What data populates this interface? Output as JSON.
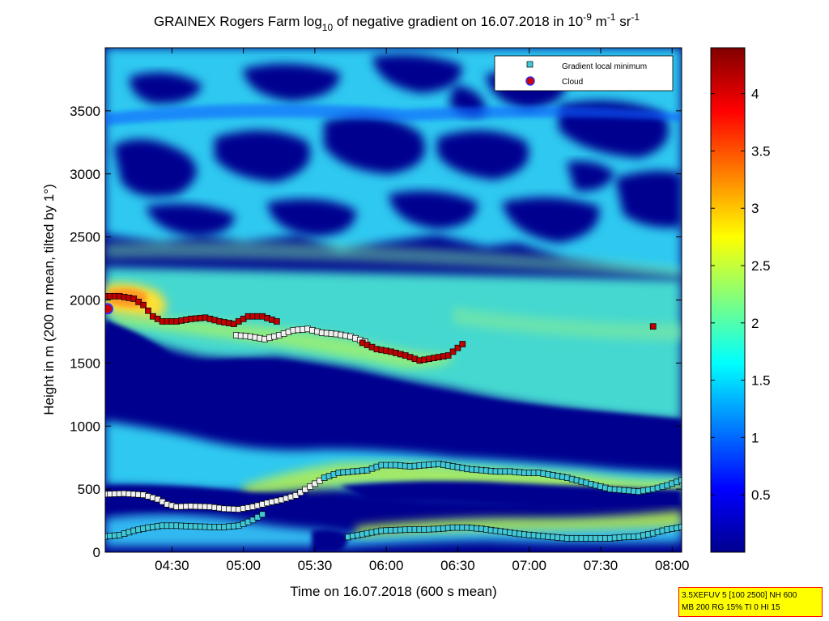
{
  "chart_data": {
    "type": "heatmap",
    "title": {
      "prefix": "GRAINEX Rogers Farm log",
      "sub": "10",
      "middle": " of negative gradient on 16.07.2018 in 10",
      "sup1": "-9",
      "unit1": " m",
      "sup2": "-1",
      "unit2": " sr",
      "sup3": "-1"
    },
    "xlabel": "Time on 16.07.2018 (600 s mean)",
    "ylabel": "Height in m (200 m mean, tilted by 1°)",
    "xlim": [
      "04:02",
      "08:04"
    ],
    "ylim": [
      0,
      4000
    ],
    "x_ticks": [
      "04:30",
      "05:00",
      "05:30",
      "06:00",
      "06:30",
      "07:00",
      "07:30",
      "08:00"
    ],
    "y_ticks": [
      "0",
      "500",
      "1000",
      "1500",
      "2000",
      "2500",
      "3000",
      "3500"
    ],
    "colorbar": {
      "colormap": "jet",
      "range": [
        0,
        4.4
      ],
      "ticks": [
        "0.5",
        "1",
        "1.5",
        "2",
        "2.5",
        "3",
        "3.5",
        "4"
      ]
    },
    "legend": {
      "placement": "top-right",
      "entries": [
        {
          "label": "Gradient local minimum",
          "marker": "square",
          "color": "#40c8d8"
        },
        {
          "label": "Cloud",
          "marker": "circle",
          "color": "#d00000"
        }
      ]
    },
    "series": [
      {
        "name": "Gradient local minimum",
        "marker": "square",
        "points": [
          [
            "04:02",
            460
          ],
          [
            "04:10",
            465
          ],
          [
            "04:18",
            455
          ],
          [
            "04:24",
            420
          ],
          [
            "04:28",
            380
          ],
          [
            "04:32",
            360
          ],
          [
            "04:38",
            365
          ],
          [
            "04:46",
            360
          ],
          [
            "04:52",
            345
          ],
          [
            "04:58",
            340
          ],
          [
            "05:04",
            360
          ],
          [
            "05:10",
            390
          ],
          [
            "05:16",
            415
          ],
          [
            "05:22",
            450
          ],
          [
            "05:28",
            520
          ],
          [
            "05:34",
            590
          ],
          [
            "05:40",
            630
          ],
          [
            "05:46",
            640
          ],
          [
            "05:52",
            650
          ],
          [
            "05:58",
            690
          ],
          [
            "06:04",
            690
          ],
          [
            "06:10",
            680
          ],
          [
            "06:16",
            690
          ],
          [
            "06:22",
            700
          ],
          [
            "06:28",
            680
          ],
          [
            "06:34",
            660
          ],
          [
            "06:40",
            650
          ],
          [
            "06:46",
            640
          ],
          [
            "06:52",
            640
          ],
          [
            "06:58",
            630
          ],
          [
            "07:04",
            630
          ],
          [
            "07:10",
            610
          ],
          [
            "07:16",
            590
          ],
          [
            "07:22",
            560
          ],
          [
            "07:28",
            530
          ],
          [
            "07:34",
            500
          ],
          [
            "07:40",
            490
          ],
          [
            "07:46",
            480
          ],
          [
            "07:52",
            500
          ],
          [
            "07:58",
            530
          ],
          [
            "08:04",
            570
          ]
        ]
      },
      {
        "name": "Gradient local minimum",
        "marker": "square",
        "points": [
          [
            "04:02",
            125
          ],
          [
            "04:08",
            135
          ],
          [
            "04:14",
            170
          ],
          [
            "04:20",
            195
          ],
          [
            "04:26",
            210
          ],
          [
            "04:32",
            210
          ],
          [
            "04:38",
            205
          ],
          [
            "04:46",
            200
          ],
          [
            "04:52",
            200
          ],
          [
            "04:58",
            210
          ],
          [
            "05:04",
            255
          ],
          [
            "05:08",
            300
          ]
        ]
      },
      {
        "name": "Gradient local minimum",
        "marker": "square",
        "points": [
          [
            "05:44",
            120
          ],
          [
            "05:52",
            150
          ],
          [
            "05:58",
            170
          ],
          [
            "06:04",
            175
          ],
          [
            "06:10",
            180
          ],
          [
            "06:16",
            180
          ],
          [
            "06:22",
            185
          ],
          [
            "06:28",
            195
          ],
          [
            "06:34",
            195
          ],
          [
            "06:40",
            185
          ],
          [
            "06:46",
            170
          ],
          [
            "06:52",
            155
          ],
          [
            "06:58",
            140
          ],
          [
            "07:04",
            130
          ],
          [
            "07:10",
            120
          ],
          [
            "07:16",
            110
          ],
          [
            "07:22",
            110
          ],
          [
            "07:28",
            110
          ],
          [
            "07:34",
            110
          ],
          [
            "07:40",
            120
          ],
          [
            "07:46",
            125
          ],
          [
            "07:52",
            150
          ],
          [
            "07:58",
            180
          ],
          [
            "08:04",
            200
          ]
        ]
      },
      {
        "name": "Gradient local minimum",
        "marker": "square",
        "points": [
          [
            "04:57",
            1720
          ],
          [
            "05:03",
            1710
          ],
          [
            "05:09",
            1690
          ],
          [
            "05:15",
            1720
          ],
          [
            "05:21",
            1760
          ],
          [
            "05:27",
            1770
          ],
          [
            "05:33",
            1740
          ],
          [
            "05:39",
            1730
          ],
          [
            "05:45",
            1710
          ],
          [
            "05:51",
            1670
          ]
        ]
      },
      {
        "name": "Cloud",
        "marker": "square",
        "points": [
          [
            "04:02",
            2030
          ],
          [
            "04:08",
            2030
          ],
          [
            "04:14",
            2010
          ],
          [
            "04:18",
            1960
          ],
          [
            "04:22",
            1870
          ],
          [
            "04:26",
            1830
          ],
          [
            "04:32",
            1830
          ],
          [
            "04:38",
            1850
          ],
          [
            "04:44",
            1860
          ],
          [
            "04:50",
            1830
          ],
          [
            "04:56",
            1810
          ],
          [
            "05:02",
            1870
          ],
          [
            "05:08",
            1870
          ],
          [
            "05:14",
            1830
          ],
          [
            "05:50",
            1660
          ],
          [
            "05:56",
            1610
          ],
          [
            "06:02",
            1590
          ],
          [
            "06:08",
            1560
          ],
          [
            "06:14",
            1520
          ],
          [
            "06:20",
            1540
          ],
          [
            "06:26",
            1560
          ],
          [
            "06:32",
            1650
          ],
          [
            "07:52",
            1790
          ]
        ]
      },
      {
        "name": "Cloud",
        "marker": "circle",
        "points": [
          [
            "04:03",
            1930
          ]
        ]
      }
    ]
  },
  "info_box": {
    "line1": "3.5XEFUV 5 [100 2500] NH 600",
    "line2": "MB 200 RG 15% TI 0 HI 15"
  },
  "colors": {
    "background_fill": "#00008f",
    "minimum_marker": "#40c8d8",
    "cloud_marker": "#c00000",
    "info_box_fill": "#ffff00",
    "info_box_border": "#ff0000"
  }
}
